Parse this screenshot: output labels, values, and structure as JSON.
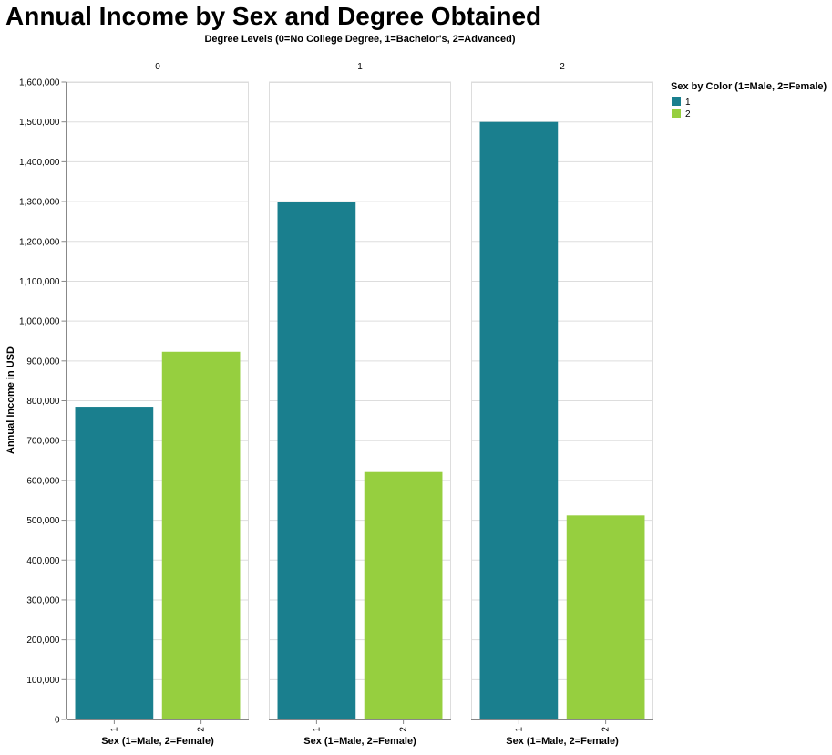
{
  "chart_data": {
    "type": "bar",
    "title": "Annual Income by Sex and Degree Obtained",
    "facet_title": "Degree Levels (0=No College Degree, 1=Bachelor's, 2=Advanced)",
    "xlabel": "Sex (1=Male, 2=Female)",
    "ylabel": "Annual Income in USD",
    "ylim": [
      0,
      1600000
    ],
    "yticks": [
      "0",
      "100,000",
      "200,000",
      "300,000",
      "400,000",
      "500,000",
      "600,000",
      "700,000",
      "800,000",
      "900,000",
      "1,000,000",
      "1,100,000",
      "1,200,000",
      "1,300,000",
      "1,400,000",
      "1,500,000",
      "1,600,000"
    ],
    "categories": [
      "1",
      "2"
    ],
    "grid": true,
    "legend": {
      "title": "Sex by Color (1=Male, 2=Female)",
      "placement": "right",
      "entries": [
        {
          "label": "1",
          "color": "#1a7f8e"
        },
        {
          "label": "2",
          "color": "#96cf3f"
        }
      ]
    },
    "facets": [
      {
        "label": "0",
        "values": [
          785000,
          923000
        ]
      },
      {
        "label": "1",
        "values": [
          1300000,
          621000
        ]
      },
      {
        "label": "2",
        "values": [
          1500000,
          512000
        ]
      }
    ]
  }
}
